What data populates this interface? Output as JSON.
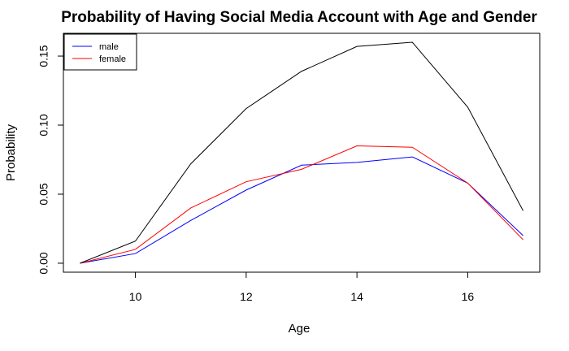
{
  "chart_data": {
    "type": "line",
    "title": "Probability of Having Social Media Account with Age and Gender",
    "xlabel": "Age",
    "ylabel": "Probability",
    "xlim": [
      8.7,
      17.3
    ],
    "ylim": [
      -0.0065,
      0.1665
    ],
    "xticks": [
      10,
      12,
      14,
      16
    ],
    "yticks": [
      0.0,
      0.05,
      0.1,
      0.15
    ],
    "ytick_labels": [
      "0.00",
      "0.05",
      "0.10",
      "0.15"
    ],
    "x": [
      9,
      10,
      11,
      12,
      13,
      14,
      15,
      16,
      17
    ],
    "legend_position": "top-left",
    "series": [
      {
        "name": "male",
        "color": "#0000ff",
        "values": [
          0.0,
          0.007,
          0.031,
          0.053,
          0.071,
          0.073,
          0.077,
          0.058,
          0.02
        ],
        "in_legend": true
      },
      {
        "name": "female",
        "color": "#ff0000",
        "values": [
          0.0,
          0.01,
          0.04,
          0.059,
          0.068,
          0.085,
          0.084,
          0.058,
          0.017
        ],
        "in_legend": true
      },
      {
        "color": "#000000",
        "values": [
          0.0,
          0.016,
          0.072,
          0.112,
          0.139,
          0.157,
          0.16,
          0.113,
          0.038
        ],
        "in_legend": false
      }
    ]
  }
}
